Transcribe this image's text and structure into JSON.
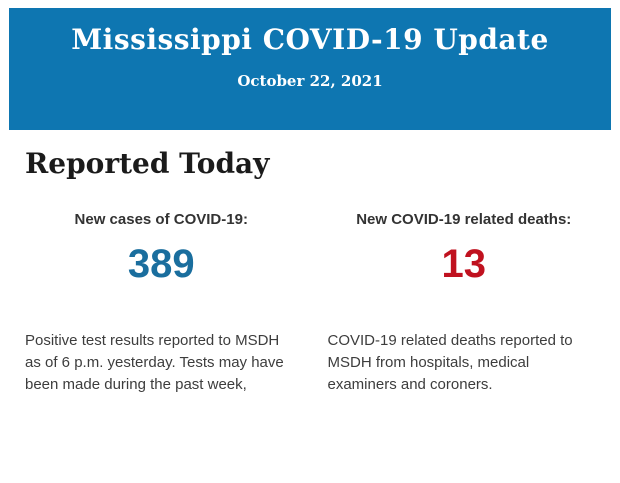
{
  "colors": {
    "header_bg": "#0e76b1",
    "cases_value": "#1a6e9e",
    "deaths_value": "#c0111f"
  },
  "header": {
    "title": "Mississippi COVID-19 Update",
    "date": "October 22, 2021"
  },
  "main": {
    "section_title": "Reported Today",
    "stats": [
      {
        "label": "New cases of COVID-19:",
        "value": "389",
        "description": "Positive test results reported to MSDH as of 6 p.m. yesterday. Tests may have been made during the past week,"
      },
      {
        "label": "New COVID-19 related deaths:",
        "value": "13",
        "description": "COVID-19 related deaths reported to MSDH from hospitals, medical examiners and coroners."
      }
    ]
  }
}
